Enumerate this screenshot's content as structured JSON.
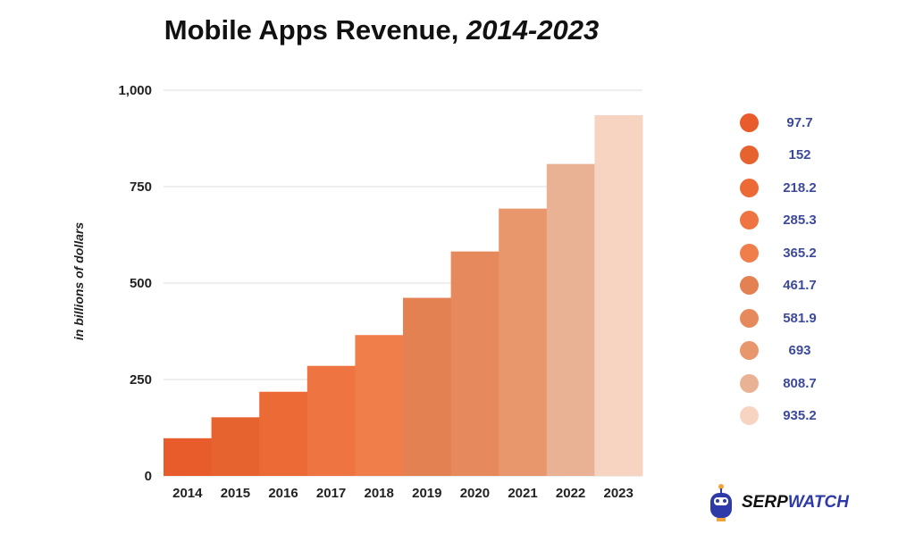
{
  "chart_data": {
    "type": "bar",
    "title": "Mobile Apps Revenue,",
    "title_italic": "2014-2023",
    "ylabel": "in billions of dollars",
    "xlabel": "",
    "categories": [
      "2014",
      "2015",
      "2016",
      "2017",
      "2018",
      "2019",
      "2020",
      "2021",
      "2022",
      "2023"
    ],
    "values": [
      97.7,
      152,
      218.2,
      285.3,
      365.2,
      461.7,
      581.9,
      693,
      808.7,
      935.2
    ],
    "value_labels": [
      "97.7",
      "152",
      "218.2",
      "285.3",
      "365.2",
      "461.7",
      "581.9",
      "693",
      "808.7",
      "935.2"
    ],
    "colors": [
      "#E85B2B",
      "#E6622F",
      "#EC6A36",
      "#EE7441",
      "#F07E4B",
      "#E38152",
      "#E68A5D",
      "#E8966B",
      "#EAB295",
      "#F7D4C2"
    ],
    "ylim": [
      0,
      1000
    ],
    "yticks": [
      0,
      250,
      500,
      750,
      1000
    ],
    "ytick_labels": [
      "0",
      "250",
      "500",
      "750",
      "1,000"
    ],
    "grid": true,
    "legend": "right",
    "value_label_color": "#3d4a9a"
  },
  "logo": {
    "part1": "SERP",
    "part2": "WATCH"
  }
}
